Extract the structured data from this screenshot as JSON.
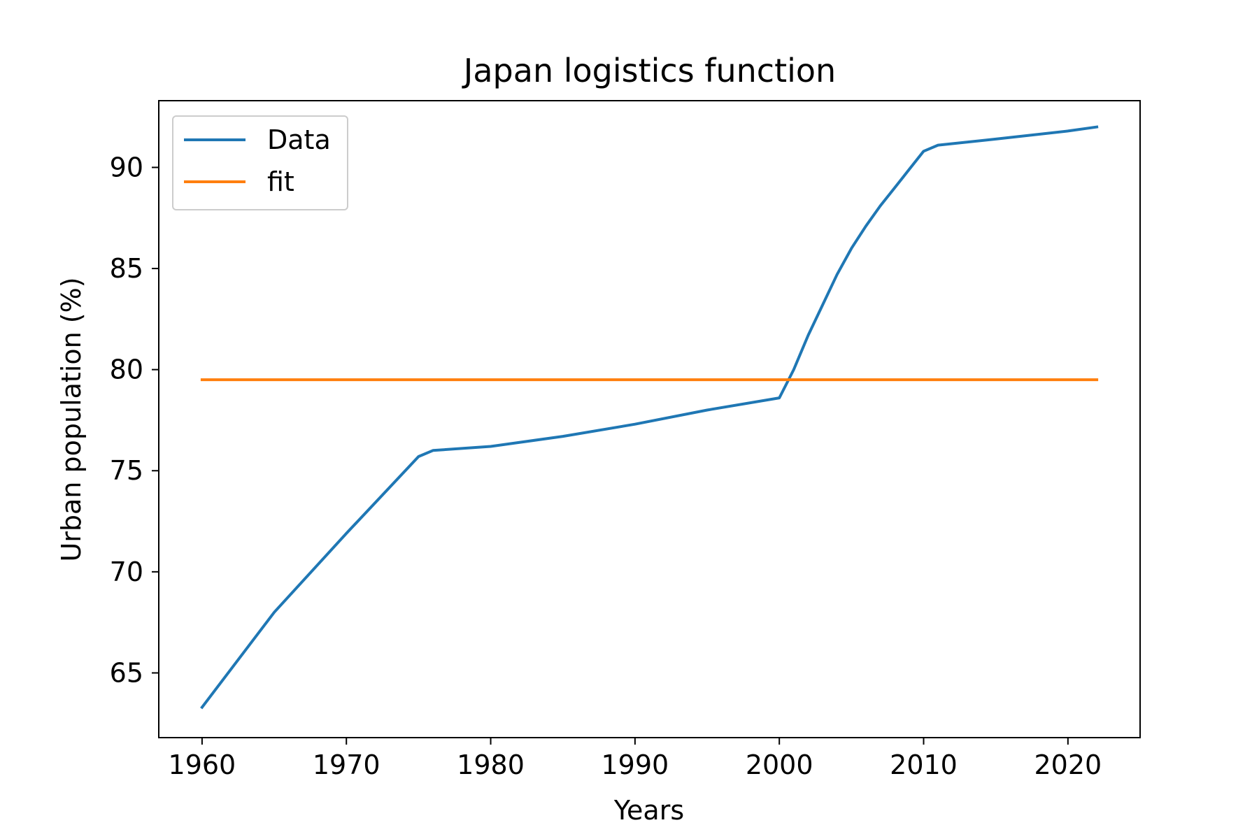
{
  "chart_data": {
    "type": "line",
    "title": "Japan logistics function",
    "xlabel": "Years",
    "ylabel": "Urban population (%)",
    "xlim": [
      1957,
      2025
    ],
    "ylim": [
      61.8,
      93.3
    ],
    "xticks": [
      1960,
      1970,
      1980,
      1990,
      2000,
      2010,
      2020
    ],
    "yticks": [
      65,
      70,
      75,
      80,
      85,
      90
    ],
    "grid": false,
    "legend_position": "top-left",
    "series": [
      {
        "name": "Data",
        "color": "#1f77b4",
        "x": [
          1960,
          1965,
          1970,
          1975,
          1976,
          1980,
          1985,
          1990,
          1995,
          2000,
          2001,
          2002,
          2003,
          2004,
          2005,
          2006,
          2007,
          2008,
          2009,
          2010,
          2011,
          2015,
          2020,
          2022
        ],
        "y": [
          63.3,
          68.0,
          71.9,
          75.7,
          76.0,
          76.2,
          76.7,
          77.3,
          78.0,
          78.6,
          80.0,
          81.7,
          83.2,
          84.7,
          86.0,
          87.1,
          88.1,
          89.0,
          89.9,
          90.8,
          91.1,
          91.4,
          91.8,
          92.0
        ]
      },
      {
        "name": "fit",
        "color": "#ff7f0e",
        "x": [
          1960,
          2022
        ],
        "y": [
          79.5,
          79.5
        ]
      }
    ]
  }
}
